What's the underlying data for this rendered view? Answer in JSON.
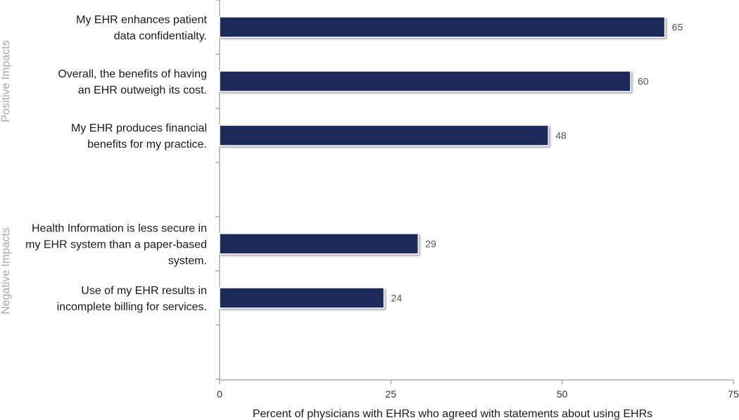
{
  "chart_data": {
    "type": "bar",
    "orientation": "horizontal",
    "xlabel": "Percent of physicians with EHRs who agreed with statements about using EHRs",
    "xlim": [
      0,
      75
    ],
    "xticks": [
      0,
      25,
      50,
      75
    ],
    "grid": false,
    "groups": [
      {
        "name": "Positive Impacts",
        "items": [
          {
            "label": [
              "My EHR enhances patient",
              "data confidentialty."
            ],
            "value": 65
          },
          {
            "label": [
              "Overall, the benefits of having",
              "an EHR outweigh its cost."
            ],
            "value": 60
          },
          {
            "label": [
              "My EHR produces financial",
              "benefits for my practice."
            ],
            "value": 48
          }
        ]
      },
      {
        "name": "Negative Impacts",
        "items": [
          {
            "label": [
              "Health Information is less secure in",
              "my EHR system than a paper-based",
              "system."
            ],
            "value": 29
          },
          {
            "label": [
              "Use of my EHR results in",
              "incomplete billing for services."
            ],
            "value": 24
          }
        ]
      }
    ],
    "colors": {
      "bar": "#1f2a5c",
      "axis": "#9a9a9a",
      "group_label": "#a8a8a8"
    }
  }
}
